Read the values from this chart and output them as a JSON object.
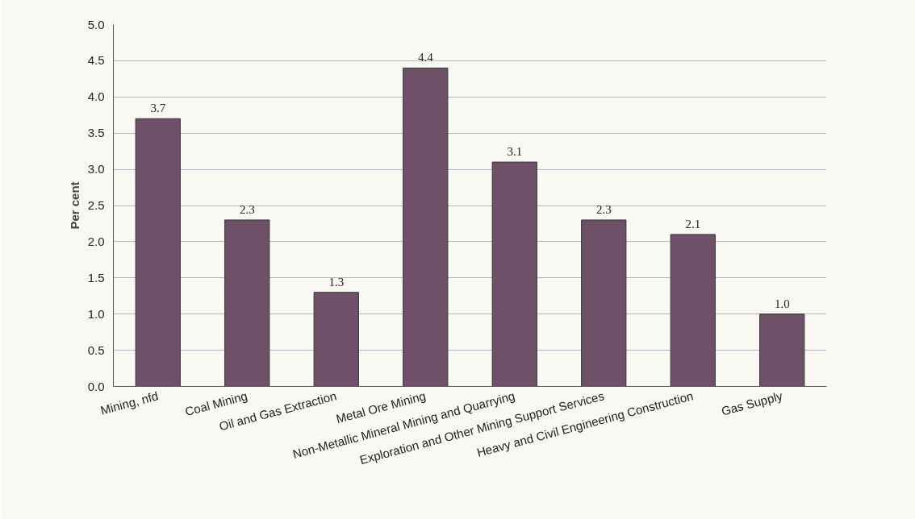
{
  "chart_data": {
    "type": "bar",
    "ylabel": "Per cent",
    "categories": [
      "Mining, nfd",
      "Coal Mining",
      "Oil and Gas Extraction",
      "Metal Ore Mining",
      "Non-Metallic Mineral Mining and Quarrying",
      "Exploration and Other Mining Support Services",
      "Heavy and Civil Engineering Construction",
      "Gas Supply"
    ],
    "values": [
      3.7,
      2.3,
      1.3,
      4.4,
      3.1,
      2.3,
      2.1,
      1.0
    ],
    "value_labels": [
      "3.7",
      "2.3",
      "1.3",
      "4.4",
      "3.1",
      "2.3",
      "2.1",
      "1.0"
    ],
    "color": "#6e5068",
    "ylim": [
      0,
      5
    ],
    "yticks": [
      {
        "value": 0,
        "label": "0.0"
      },
      {
        "value": 0.5,
        "label": "0.5"
      },
      {
        "value": 1,
        "label": "1.0"
      },
      {
        "value": 1.5,
        "label": "1.5"
      },
      {
        "value": 2,
        "label": "2.0"
      },
      {
        "value": 2.5,
        "label": "2.5"
      },
      {
        "value": 3,
        "label": "3.0"
      },
      {
        "value": 3.5,
        "label": "3.5"
      },
      {
        "value": 4,
        "label": "4.0"
      },
      {
        "value": 4.5,
        "label": "4.5"
      },
      {
        "value": 5,
        "label": "5.0"
      }
    ],
    "grid": "y"
  }
}
